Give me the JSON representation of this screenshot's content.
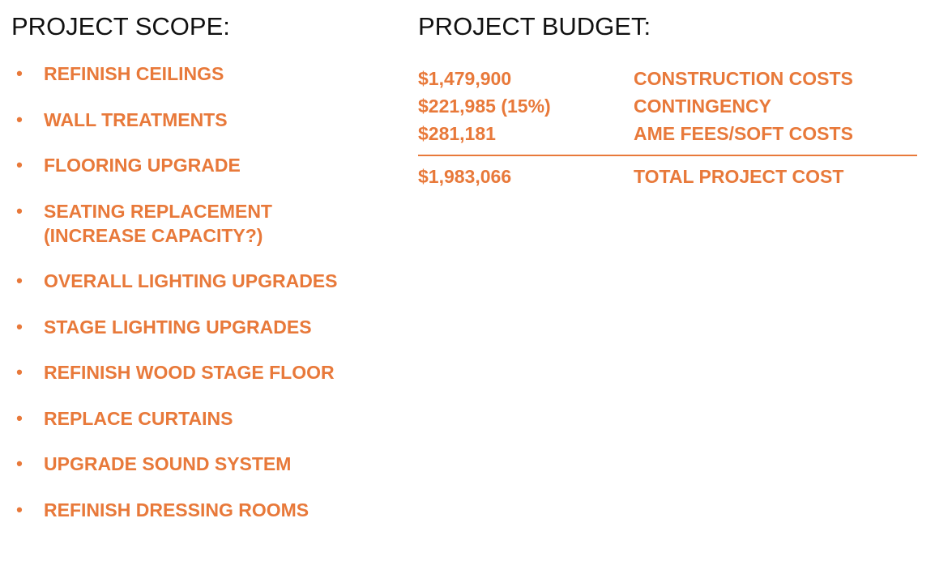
{
  "scope": {
    "heading": "PROJECT SCOPE:",
    "items": [
      {
        "text": "REFINISH CEILINGS"
      },
      {
        "text": "WALL TREATMENTS"
      },
      {
        "text": "FLOORING UPGRADE"
      },
      {
        "text": "SEATING REPLACEMENT",
        "subtext": "(INCREASE CAPACITY?)"
      },
      {
        "text": "OVERALL LIGHTING UPGRADES"
      },
      {
        "text": "STAGE LIGHTING UPGRADES"
      },
      {
        "text": "REFINISH WOOD STAGE FLOOR"
      },
      {
        "text": "REPLACE CURTAINS"
      },
      {
        "text": "UPGRADE SOUND SYSTEM"
      },
      {
        "text": "REFINISH DRESSING ROOMS"
      }
    ],
    "bullet_glyph": "•"
  },
  "budget": {
    "heading": "PROJECT BUDGET:",
    "rows": [
      {
        "amount": "$1,479,900",
        "label": "CONSTRUCTION COSTS"
      },
      {
        "amount": "$221,985 (15%)",
        "label": "CONTINGENCY"
      },
      {
        "amount": "$281,181",
        "label": "AME FEES/SOFT COSTS"
      }
    ],
    "total": {
      "amount": "$1,983,066",
      "label": "TOTAL PROJECT COST"
    }
  },
  "colors": {
    "accent": "#E8793A",
    "heading": "#111111",
    "background": "#FFFFFF"
  }
}
